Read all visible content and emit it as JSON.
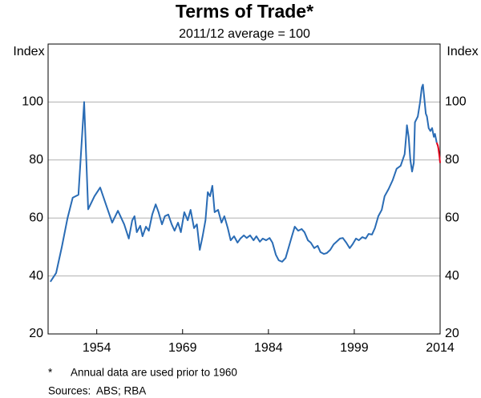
{
  "chart_data": {
    "type": "line",
    "title": "Terms of Trade*",
    "subtitle": "2011/12 average = 100",
    "ylabel": "Index",
    "y2label": "Index",
    "xlim": [
      1945.5,
      2014
    ],
    "xticks": [
      1954,
      1969,
      1984,
      1999,
      2014
    ],
    "ylim": [
      20,
      120
    ],
    "yticks": [
      20,
      40,
      60,
      80,
      100
    ],
    "y2lim": [
      20,
      120
    ],
    "y2ticks": [
      20,
      40,
      60,
      80,
      100
    ],
    "grid": true,
    "series": [
      {
        "color": "#2a6cb5",
        "x": [
          1945.9,
          1946.9,
          1947.9,
          1948.9,
          1949.8,
          1950.8,
          1951.8,
          1952.5,
          1953.6,
          1954.6,
          1955.6,
          1956.7,
          1957.7,
          1958.8,
          1959.6,
          1960.2,
          1960.6,
          1961.0,
          1961.6,
          1962.0,
          1962.6,
          1963.1,
          1963.7,
          1964.3,
          1964.8,
          1965.4,
          1965.9,
          1966.5,
          1967.1,
          1967.6,
          1968.2,
          1968.7,
          1969.3,
          1969.9,
          1970.4,
          1971.0,
          1971.5,
          1972.0,
          1972.5,
          1973.0,
          1973.4,
          1973.8,
          1974.2,
          1974.6,
          1975.2,
          1975.8,
          1976.3,
          1976.9,
          1977.4,
          1978.0,
          1978.6,
          1979.1,
          1979.7,
          1980.2,
          1980.8,
          1981.4,
          1981.9,
          1982.5,
          1983.0,
          1983.6,
          1984.2,
          1984.7,
          1985.3,
          1985.8,
          1986.4,
          1987.0,
          1987.5,
          1988.1,
          1988.6,
          1989.2,
          1989.8,
          1990.3,
          1990.9,
          1991.4,
          1992.0,
          1992.6,
          1993.1,
          1993.7,
          1994.2,
          1994.8,
          1995.4,
          1995.9,
          1996.5,
          1997.0,
          1997.6,
          1998.2,
          1998.7,
          1999.3,
          1999.8,
          2000.4,
          2001.0,
          2001.5,
          2002.1,
          2002.6,
          2003.2,
          2003.8,
          2004.3,
          2005.0,
          2005.7,
          2006.4,
          2007.1,
          2007.8,
          2008.1,
          2008.2,
          2008.5,
          2008.8,
          2009.1,
          2009.4,
          2009.6,
          2010.1,
          2010.5,
          2010.8,
          2011.0,
          2011.3,
          2011.5,
          2011.7,
          2012.0,
          2012.3,
          2012.6,
          2012.9,
          2013.1,
          2013.4
        ],
        "values": [
          38,
          41,
          50,
          60,
          67,
          68,
          100,
          63,
          67.5,
          70.5,
          64.7,
          58.4,
          62.5,
          57.8,
          52.9,
          59.2,
          60.6,
          55.1,
          57.3,
          53.7,
          57,
          55.6,
          61.2,
          64.7,
          62,
          57.8,
          60.6,
          61.2,
          57.8,
          55.6,
          58.4,
          55.1,
          62,
          59.2,
          62.8,
          56.5,
          57.8,
          49,
          53.7,
          59.2,
          68.9,
          67.5,
          71.1,
          62,
          62.8,
          58.4,
          60.6,
          56.5,
          52.3,
          53.7,
          51.5,
          52.9,
          54,
          53.1,
          54,
          52.3,
          53.7,
          51.8,
          52.9,
          52.3,
          53.1,
          51.5,
          47.3,
          45.4,
          44.9,
          46.2,
          49.6,
          53.7,
          57,
          55.6,
          56.2,
          55.1,
          52.3,
          51.5,
          49.6,
          50.4,
          48.2,
          47.6,
          47.9,
          49,
          50.9,
          51.8,
          52.9,
          53.1,
          51.5,
          49.6,
          50.9,
          52.9,
          52.3,
          53.4,
          52.9,
          54.5,
          54.3,
          56.5,
          60.6,
          62.8,
          67.5,
          70,
          73,
          77,
          78,
          82,
          89,
          92,
          88,
          80,
          76,
          79,
          93,
          95,
          100,
          105,
          106,
          100,
          96,
          95,
          91,
          90,
          91,
          88,
          89,
          86
        ]
      },
      {
        "color": "#e0001b",
        "x": [
          2013.4,
          2013.6,
          2013.7,
          2013.9,
          2014.0
        ],
        "values": [
          86,
          85,
          84,
          81,
          79
        ]
      }
    ],
    "notes": [
      {
        "marker": "*",
        "text": "Annual data are used prior to 1960"
      }
    ],
    "sources": "Sources:  ABS; RBA"
  }
}
